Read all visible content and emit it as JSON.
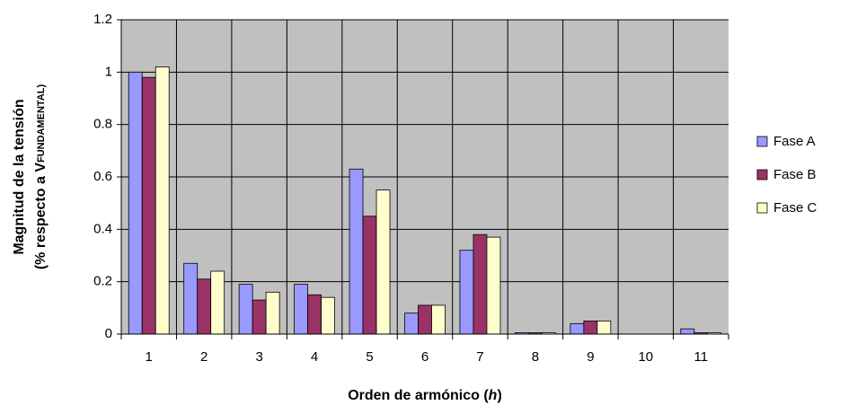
{
  "chart_data": {
    "type": "bar",
    "ylabel_line1": "Magnitud de la tensión",
    "ylabel_line2": "(% respecto a V",
    "ylabel_line2_sub": "FUNDAMENTAL)",
    "xlabel": "Orden de armónico (",
    "xlabel_italic": "h",
    "xlabel_end": ")",
    "categories": [
      "1",
      "2",
      "3",
      "4",
      "5",
      "6",
      "7",
      "8",
      "9",
      "10",
      "11"
    ],
    "series": [
      {
        "name": "Fase A",
        "color": "#9999ff",
        "values": [
          1.0,
          0.27,
          0.19,
          0.19,
          0.63,
          0.08,
          0.32,
          0.005,
          0.04,
          0,
          0.02
        ]
      },
      {
        "name": "Fase B",
        "color": "#993366",
        "values": [
          0.98,
          0.21,
          0.13,
          0.15,
          0.45,
          0.11,
          0.38,
          0.005,
          0.05,
          0,
          0.005
        ]
      },
      {
        "name": "Fase C",
        "color": "#ffffcc",
        "values": [
          1.02,
          0.24,
          0.16,
          0.14,
          0.55,
          0.11,
          0.37,
          0.005,
          0.05,
          0,
          0.005
        ]
      }
    ],
    "ylim": [
      0,
      1.2
    ],
    "yticks": [
      0,
      0.2,
      0.4,
      0.6,
      0.8,
      1,
      1.2
    ],
    "grid": true,
    "legend": "right"
  }
}
